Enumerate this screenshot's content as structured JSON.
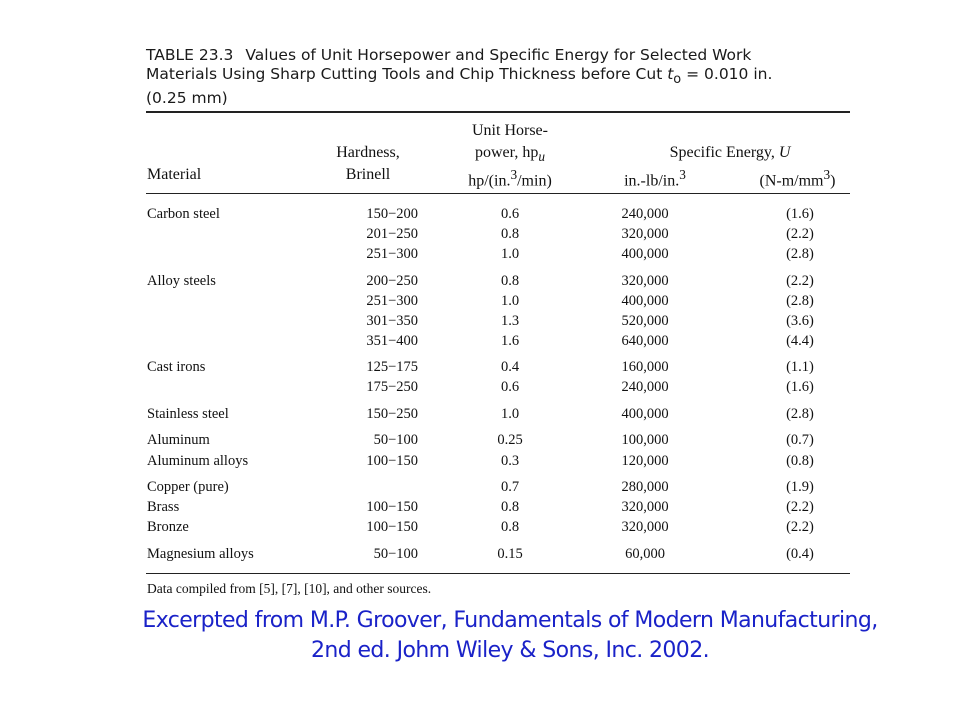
{
  "table": {
    "number": "TABLE 23.3",
    "caption_line1": "Values of Unit Horsepower and Specific Energy for Selected Work",
    "caption_line2_pre": "Materials Using Sharp Cutting Tools and Chip Thickness before Cut ",
    "caption_var": "t",
    "caption_var_sub": "o",
    "caption_line2_post": " = 0.010 in.",
    "caption_line3": "(0.25 mm)",
    "headers": {
      "material": "Material",
      "hardness_1": "Hardness,",
      "hardness_2": "Brinell",
      "hp_1": "Unit Horse-",
      "hp_2_pre": "power, hp",
      "hp_2_sub": "u",
      "hp_3_pre": "hp/(in.",
      "hp_3_sup": "3",
      "hp_3_post": "/min)",
      "se_1_pre": "Specific Energy, ",
      "se_1_var": "U",
      "se_2_pre": "in.-lb/in.",
      "se_2_sup": "3",
      "nm_pre": "(N-m/mm",
      "nm_sup": "3",
      "nm_post": ")"
    },
    "rows": [
      {
        "material": "Carbon steel",
        "hardness": "150−200",
        "hp": "0.6",
        "se": "240,000",
        "nm": "(1.6)"
      },
      {
        "material": "",
        "hardness": "201−250",
        "hp": "0.8",
        "se": "320,000",
        "nm": "(2.2)"
      },
      {
        "material": "",
        "hardness": "251−300",
        "hp": "1.0",
        "se": "400,000",
        "nm": "(2.8)"
      },
      {
        "material": "Alloy steels",
        "hardness": "200−250",
        "hp": "0.8",
        "se": "320,000",
        "nm": "(2.2)"
      },
      {
        "material": "",
        "hardness": "251−300",
        "hp": "1.0",
        "se": "400,000",
        "nm": "(2.8)"
      },
      {
        "material": "",
        "hardness": "301−350",
        "hp": "1.3",
        "se": "520,000",
        "nm": "(3.6)"
      },
      {
        "material": "",
        "hardness": "351−400",
        "hp": "1.6",
        "se": "640,000",
        "nm": "(4.4)"
      },
      {
        "material": "Cast irons",
        "hardness": "125−175",
        "hp": "0.4",
        "se": "160,000",
        "nm": "(1.1)"
      },
      {
        "material": "",
        "hardness": "175−250",
        "hp": "0.6",
        "se": "240,000",
        "nm": "(1.6)"
      },
      {
        "material": "Stainless steel",
        "hardness": "150−250",
        "hp": "1.0",
        "se": "400,000",
        "nm": "(2.8)"
      },
      {
        "material": "Aluminum",
        "hardness": "50−100",
        "hp": "0.25",
        "se": "100,000",
        "nm": "(0.7)"
      },
      {
        "material": "Aluminum alloys",
        "hardness": "100−150",
        "hp": "0.3",
        "se": "120,000",
        "nm": "(0.8)"
      },
      {
        "material": "Copper (pure)",
        "hardness": "",
        "hp": "0.7",
        "se": "280,000",
        "nm": "(1.9)"
      },
      {
        "material": "Brass",
        "hardness": "100−150",
        "hp": "0.8",
        "se": "320,000",
        "nm": "(2.2)"
      },
      {
        "material": "Bronze",
        "hardness": "100−150",
        "hp": "0.8",
        "se": "320,000",
        "nm": "(2.2)"
      },
      {
        "material": "Magnesium alloys",
        "hardness": "50−100",
        "hp": "0.15",
        "se": "60,000",
        "nm": "(0.4)"
      }
    ],
    "footnote": "Data compiled from [5], [7], [10], and other sources."
  },
  "credit": {
    "line1": "Excerpted from M.P. Groover, Fundamentals of Modern Manufacturing,",
    "line2": "2nd ed. Johm Wiley & Sons, Inc. 2002."
  }
}
